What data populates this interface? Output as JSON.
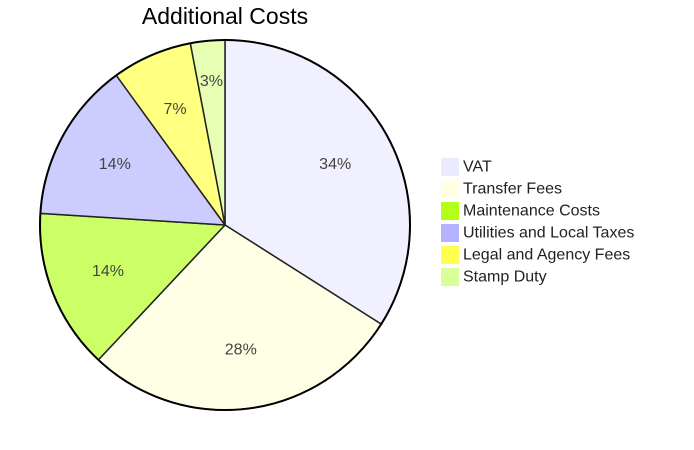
{
  "chart_data": {
    "type": "pie",
    "title": "Additional Costs",
    "categories": [
      "VAT",
      "Transfer Fees",
      "Maintenance Costs",
      "Utilities and Local Taxes",
      "Legal and Agency Fees",
      "Stamp Duty"
    ],
    "values": [
      34,
      28,
      14,
      14,
      7,
      3
    ],
    "labels": [
      "34%",
      "28%",
      "14%",
      "14%",
      "7%",
      "3%"
    ],
    "colors": [
      "#f0f0ff",
      "#ffffe6",
      "#ccff66",
      "#ccccff",
      "#ffff80",
      "#e6ffb3"
    ],
    "legend_colors": [
      "#ebebff",
      "#ffffe6",
      "#b3ff1a",
      "#b3b3ff",
      "#ffff4d",
      "#d9ff99"
    ],
    "start_angle_deg": 0,
    "direction": "clockwise",
    "legend_position": "right"
  }
}
